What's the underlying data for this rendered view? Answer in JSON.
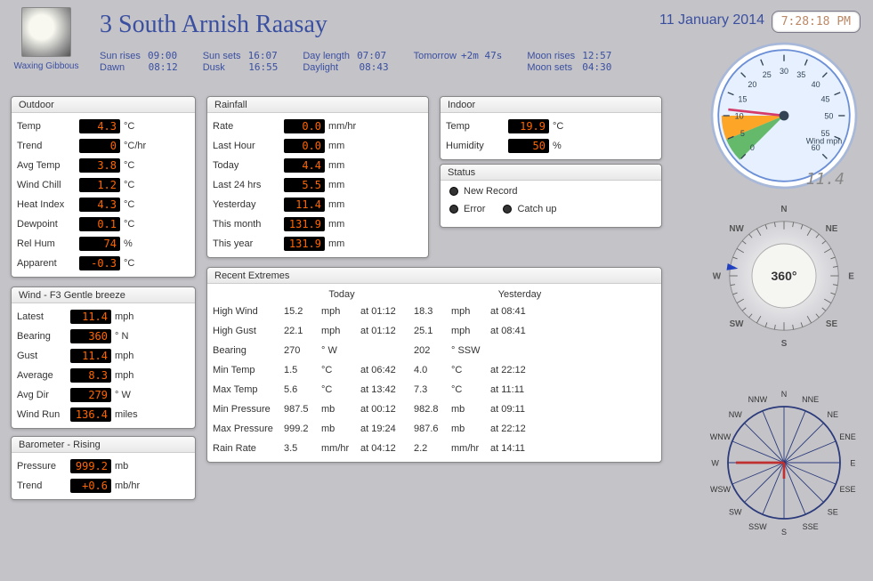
{
  "header": {
    "title": "3 South Arnish Raasay",
    "moon_phase": "Waxing Gibbous",
    "date": "11 January 2014",
    "time": "7:28:18 PM",
    "sun": {
      "sun_rises_lbl": "Sun rises",
      "sun_rises": "09:00",
      "dawn_lbl": "Dawn",
      "dawn": "08:12",
      "sun_sets_lbl": "Sun sets",
      "sun_sets": "16:07",
      "dusk_lbl": "Dusk",
      "dusk": "16:55",
      "day_length_lbl": "Day length",
      "day_length": "07:07",
      "daylight_lbl": "Daylight",
      "daylight": "08:43",
      "tomorrow_lbl": "Tomorrow",
      "tomorrow": "+2m 47s",
      "moon_rises_lbl": "Moon rises",
      "moon_rises": "12:57",
      "moon_sets_lbl": "Moon sets",
      "moon_sets": "04:30"
    }
  },
  "outdoor": {
    "title": "Outdoor",
    "rows": [
      {
        "lbl": "Temp",
        "val": "4.3",
        "unit": "°C"
      },
      {
        "lbl": "Trend",
        "val": "0",
        "unit": "°C/hr"
      },
      {
        "lbl": "Avg Temp",
        "val": "3.8",
        "unit": "°C"
      },
      {
        "lbl": "Wind Chill",
        "val": "1.2",
        "unit": "°C"
      },
      {
        "lbl": "Heat Index",
        "val": "4.3",
        "unit": "°C"
      },
      {
        "lbl": "Dewpoint",
        "val": "0.1",
        "unit": "°C"
      },
      {
        "lbl": "Rel Hum",
        "val": "74",
        "unit": "%"
      },
      {
        "lbl": "Apparent",
        "val": "-0.3",
        "unit": "°C"
      }
    ]
  },
  "wind": {
    "title": "Wind - F3 Gentle breeze",
    "rows": [
      {
        "lbl": "Latest",
        "val": "11.4",
        "unit": "mph"
      },
      {
        "lbl": "Bearing",
        "val": "360",
        "unit": "° N"
      },
      {
        "lbl": "Gust",
        "val": "11.4",
        "unit": "mph"
      },
      {
        "lbl": "Average",
        "val": "8.3",
        "unit": "mph"
      },
      {
        "lbl": "Avg Dir",
        "val": "279",
        "unit": "° W"
      },
      {
        "lbl": "Wind Run",
        "val": "136.4",
        "unit": "miles"
      }
    ]
  },
  "barometer": {
    "title": "Barometer - Rising",
    "rows": [
      {
        "lbl": "Pressure",
        "val": "999.2",
        "unit": "mb"
      },
      {
        "lbl": "Trend",
        "val": "+0.6",
        "unit": "mb/hr"
      }
    ]
  },
  "rainfall": {
    "title": "Rainfall",
    "rows": [
      {
        "lbl": "Rate",
        "val": "0.0",
        "unit": "mm/hr"
      },
      {
        "lbl": "Last Hour",
        "val": "0.0",
        "unit": "mm"
      },
      {
        "lbl": "Today",
        "val": "4.4",
        "unit": "mm"
      },
      {
        "lbl": "Last 24 hrs",
        "val": "5.5",
        "unit": "mm"
      },
      {
        "lbl": "Yesterday",
        "val": "11.4",
        "unit": "mm"
      },
      {
        "lbl": "This month",
        "val": "131.9",
        "unit": "mm"
      },
      {
        "lbl": "This year",
        "val": "131.9",
        "unit": "mm"
      }
    ]
  },
  "indoor": {
    "title": "Indoor",
    "rows": [
      {
        "lbl": "Temp",
        "val": "19.9",
        "unit": "°C"
      },
      {
        "lbl": "Humidity",
        "val": "50",
        "unit": "%"
      }
    ]
  },
  "status": {
    "title": "Status",
    "items": [
      "New Record",
      "Error",
      "Catch up"
    ]
  },
  "extremes": {
    "title": "Recent Extremes",
    "today_hdr": "Today",
    "yest_hdr": "Yesterday",
    "rows": [
      {
        "lbl": "High Wind",
        "tv": "15.2",
        "tu": "mph",
        "tt": "at 01:12",
        "yv": "18.3",
        "yu": "mph",
        "yt": "at 08:41"
      },
      {
        "lbl": "High Gust",
        "tv": "22.1",
        "tu": "mph",
        "tt": "at 01:12",
        "yv": "25.1",
        "yu": "mph",
        "yt": "at 08:41"
      },
      {
        "lbl": "Bearing",
        "tv": "270",
        "tu": "° W",
        "tt": "",
        "yv": "202",
        "yu": "° SSW",
        "yt": ""
      },
      {
        "lbl": "Min Temp",
        "tv": "1.5",
        "tu": "°C",
        "tt": "at 06:42",
        "yv": "4.0",
        "yu": "°C",
        "yt": "at 22:12"
      },
      {
        "lbl": "Max Temp",
        "tv": "5.6",
        "tu": "°C",
        "tt": "at 13:42",
        "yv": "7.3",
        "yu": "°C",
        "yt": "at 11:11"
      },
      {
        "lbl": "Min Pressure",
        "tv": "987.5",
        "tu": "mb",
        "tt": "at 00:12",
        "yv": "982.8",
        "yu": "mb",
        "yt": "at 09:11"
      },
      {
        "lbl": "Max Pressure",
        "tv": "999.2",
        "tu": "mb",
        "tt": "at 19:24",
        "yv": "987.6",
        "yu": "mb",
        "yt": "at 22:12"
      },
      {
        "lbl": "Rain Rate",
        "tv": "3.5",
        "tu": "mm/hr",
        "tt": "at 04:12",
        "yv": "2.2",
        "yu": "mm/hr",
        "yt": "at 14:11"
      }
    ]
  },
  "gauge": {
    "label": "Wind mph",
    "value": "11.4",
    "ticks": [
      0,
      5,
      10,
      15,
      20,
      25,
      30,
      35,
      40,
      45,
      50,
      55,
      60
    ],
    "green_to": 5,
    "amber_to": 10,
    "bg": "#e6f0ff",
    "rim": "#6b8fd6",
    "needle": "#d43a6a"
  },
  "compass": {
    "deg": "360°",
    "dirs": [
      "N",
      "NE",
      "E",
      "SE",
      "S",
      "SW",
      "W",
      "NW"
    ]
  },
  "rose": {
    "dirs": [
      "N",
      "NNE",
      "NE",
      "ENE",
      "E",
      "ESE",
      "SE",
      "SSE",
      "S",
      "SSW",
      "SW",
      "WSW",
      "W",
      "WNW",
      "NW",
      "NNW"
    ]
  }
}
